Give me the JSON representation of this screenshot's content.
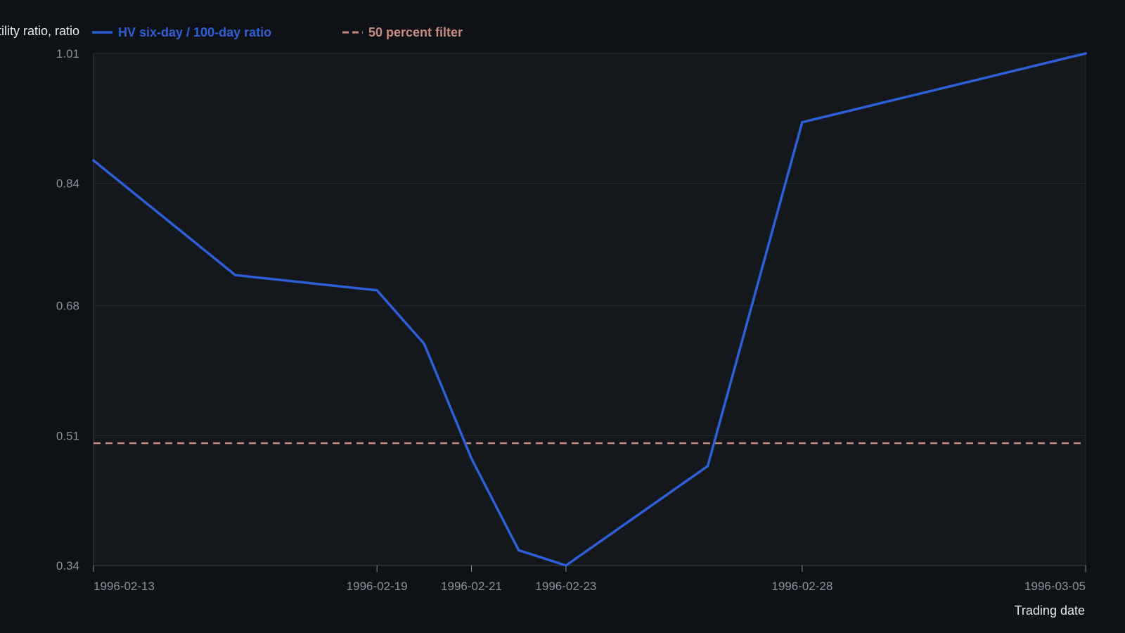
{
  "colors": {
    "background": "#0e1116",
    "plot_background": "#14171c",
    "grid": "#262a31",
    "axis": "#3a3f47",
    "tick_text": "#8b919a",
    "axis_title_text": "#e6e8eb",
    "series_line": "#2f5fd6",
    "threshold_line": "#c98a7e"
  },
  "chart_data": {
    "type": "line",
    "ylabel": "Volatility ratio, ratio",
    "xlabel": "Trading date",
    "x_ticks": [
      "1996-02-13",
      "1996-02-19",
      "1996-02-21",
      "1996-02-23",
      "1996-02-28",
      "1996-03-05"
    ],
    "y_ticks": [
      "0.34",
      "0.51",
      "0.68",
      "0.84",
      "1.01"
    ],
    "ylim": [
      0.34,
      1.01
    ],
    "xlim": [
      "1996-02-13",
      "1996-03-05"
    ],
    "grid": true,
    "legend_position": "top-left",
    "series": [
      {
        "name": "HV six-day / 100-day ratio",
        "x": [
          "1996-02-13",
          "1996-02-16",
          "1996-02-19",
          "1996-02-20",
          "1996-02-21",
          "1996-02-22",
          "1996-02-23",
          "1996-02-26",
          "1996-02-28",
          "1996-03-05"
        ],
        "values": [
          0.87,
          0.72,
          0.7,
          0.63,
          0.48,
          0.36,
          0.34,
          0.47,
          0.92,
          1.01
        ]
      }
    ],
    "threshold": {
      "name": "50 percent filter",
      "value": 0.5
    }
  }
}
